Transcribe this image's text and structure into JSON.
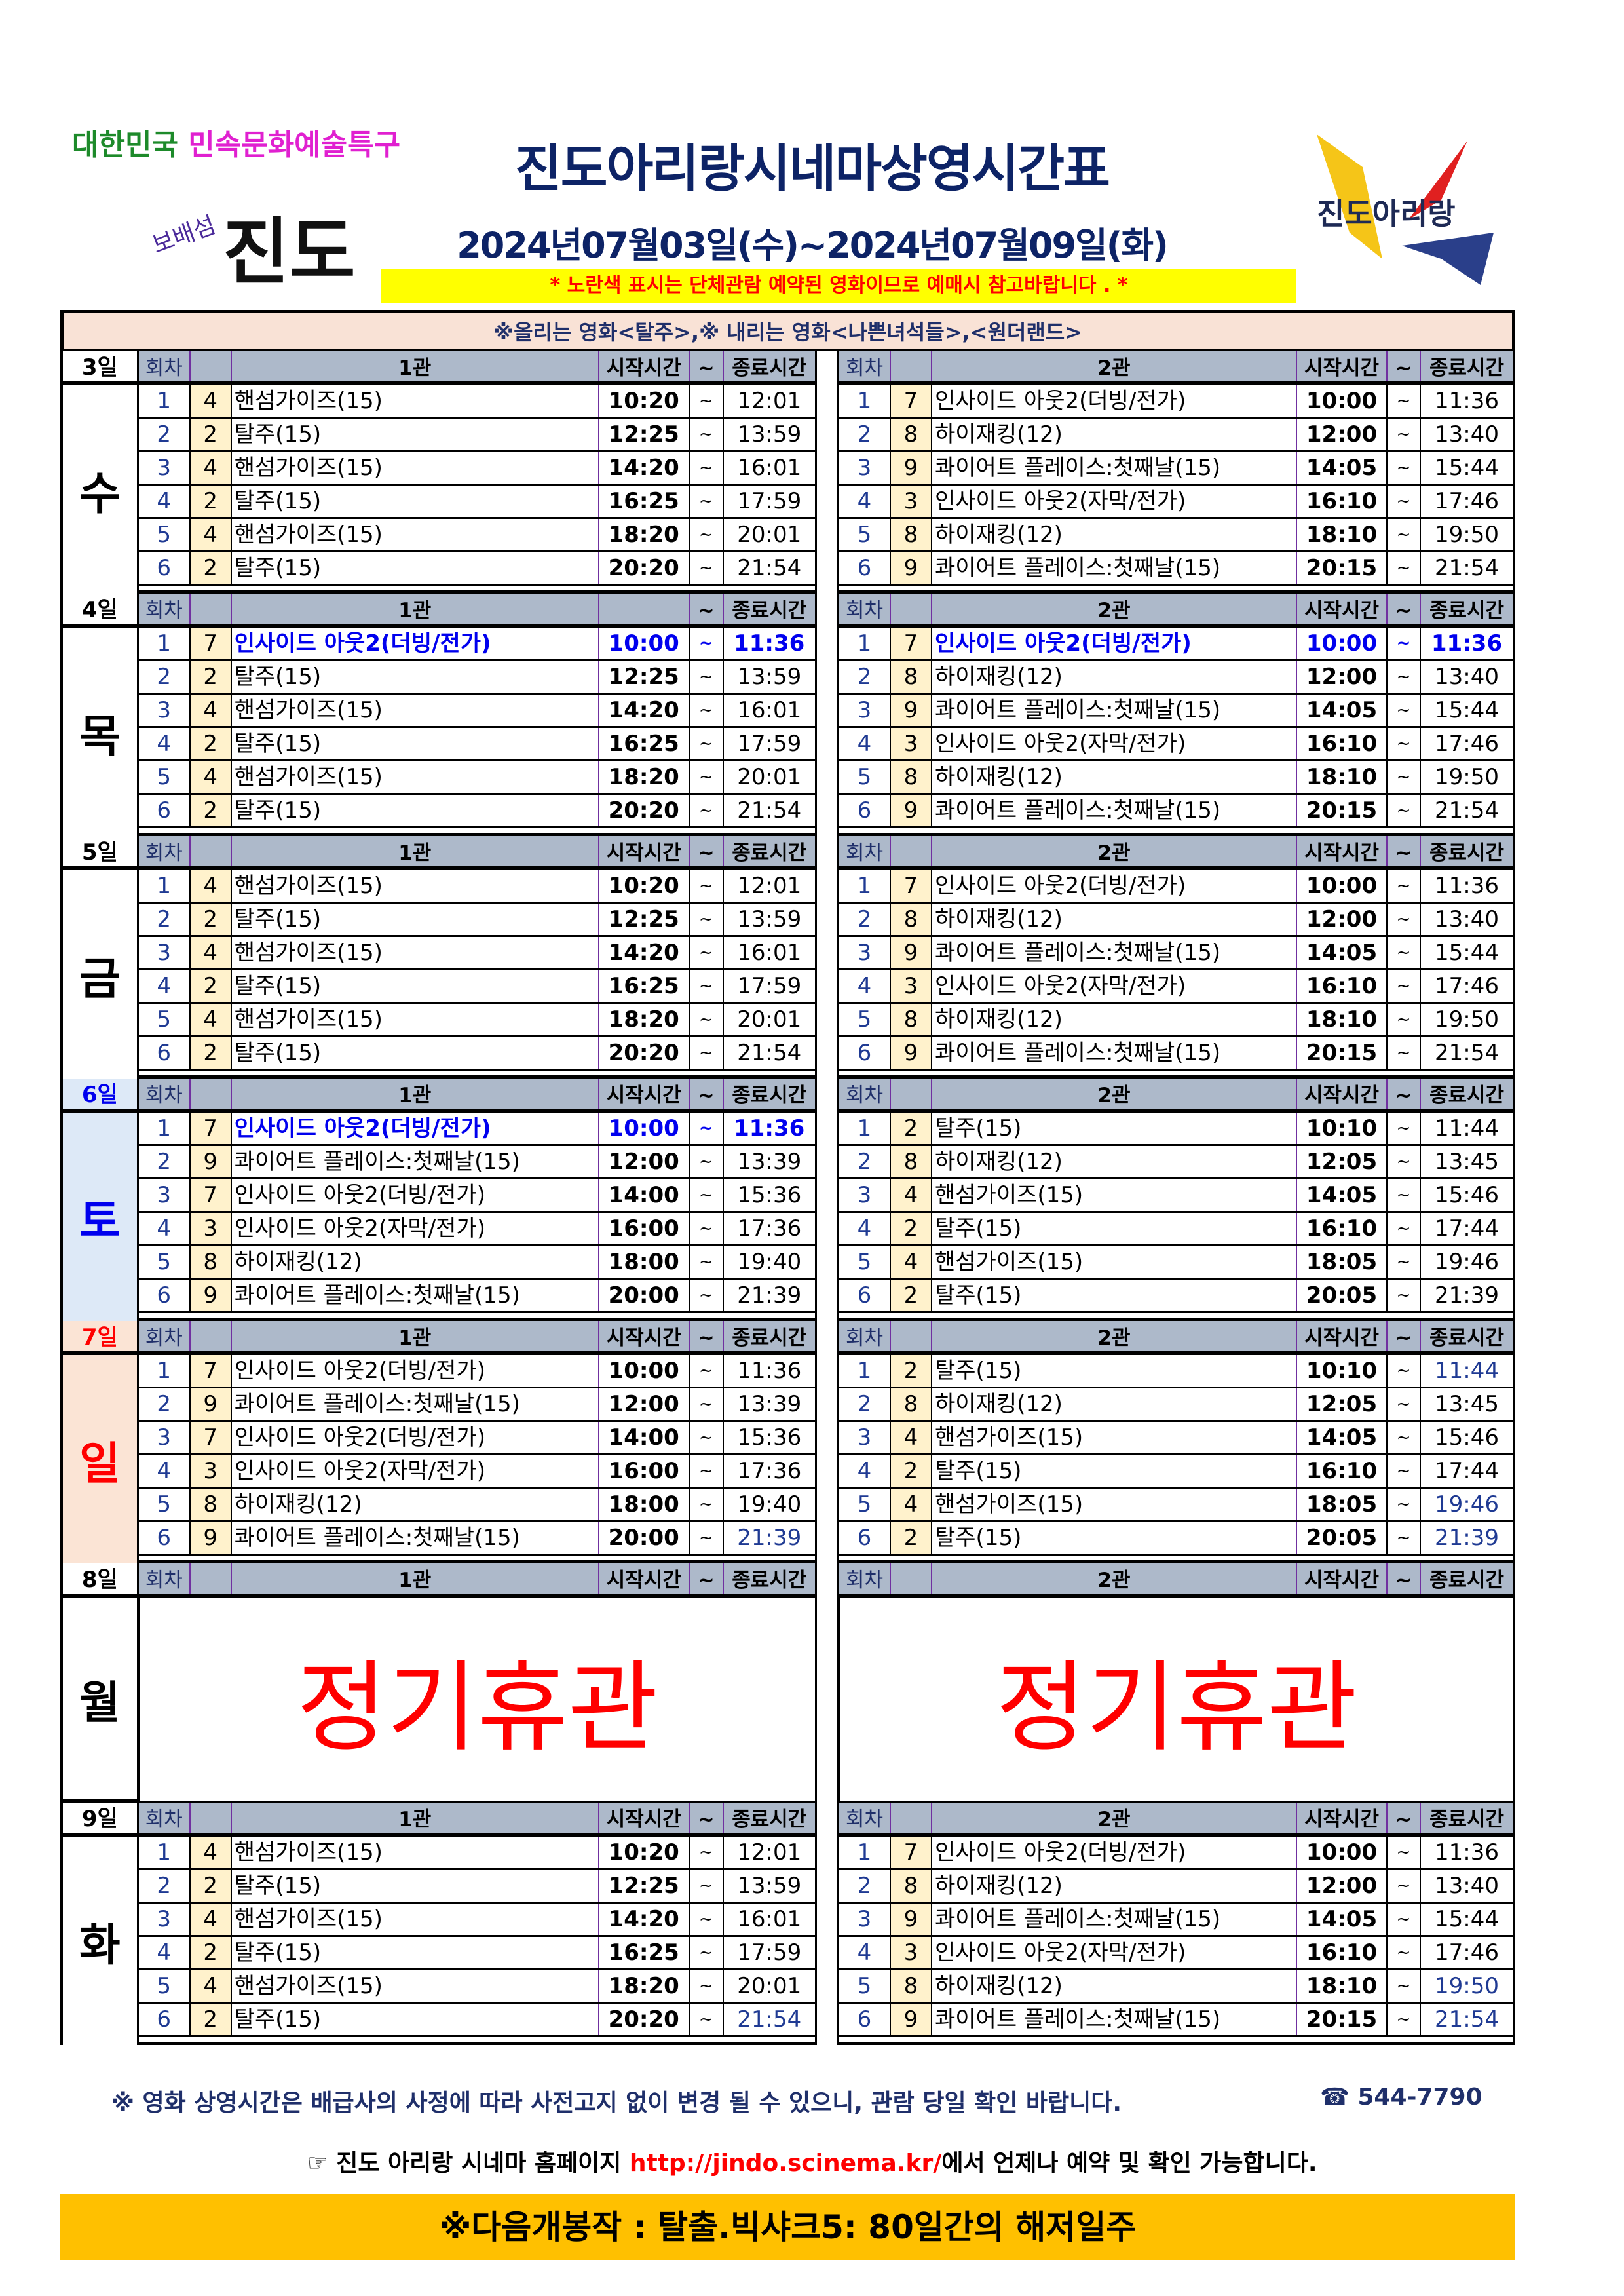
{
  "logo_left": {
    "line1_green": "대한민국",
    "line1_magenta": "민속문화예술특구",
    "small": "보배섬",
    "big": "진도"
  },
  "logo_right": {
    "text": "진도아리랑"
  },
  "title": "진도아리랑시네마상영시간표",
  "date_range": "2024년07월03일(수)~2024년07월09일(화)",
  "yellow_notice": "* 노란색 표시는 단체관람 예약된 영화이므로 예매시 참고바랍니다 . *",
  "top_notice": "※올리는 영화<탈주>,※ 내리는 영화<나쁜녀석들>,<원더랜드>",
  "colors": {
    "header_bg": "#adb9ca",
    "rating_bg": "#fff2cc",
    "highlight": "#0000ee",
    "closed": "#ff0000",
    "next_bg": "#ffc000",
    "notice_bg": "#f9e2d6",
    "sat_bg": "#dde9f7",
    "sun_bg": "#fbe4d5"
  },
  "days": [
    {
      "day": "3일",
      "weekday": "수",
      "left": {
        "h": {
          "round": "회차",
          "hall": "1관",
          "start": "시작시간",
          "tilde": "~",
          "end": "종료시간"
        },
        "rows": [
          {
            "n": "1",
            "r": "4",
            "t": "핸섬가이즈(15)",
            "s": "10:20",
            "e": "12:01"
          },
          {
            "n": "2",
            "r": "2",
            "t": "탈주(15)",
            "s": "12:25",
            "e": "13:59"
          },
          {
            "n": "3",
            "r": "4",
            "t": "핸섬가이즈(15)",
            "s": "14:20",
            "e": "16:01"
          },
          {
            "n": "4",
            "r": "2",
            "t": "탈주(15)",
            "s": "16:25",
            "e": "17:59"
          },
          {
            "n": "5",
            "r": "4",
            "t": "핸섬가이즈(15)",
            "s": "18:20",
            "e": "20:01"
          },
          {
            "n": "6",
            "r": "2",
            "t": "탈주(15)",
            "s": "20:20",
            "e": "21:54"
          }
        ]
      },
      "right": {
        "h": {
          "round": "회차",
          "hall": "2관",
          "start": "시작시간",
          "tilde": "~",
          "end": "종료시간"
        },
        "rows": [
          {
            "n": "1",
            "r": "7",
            "t": "인사이드 아웃2(더빙/전가)",
            "s": "10:00",
            "e": "11:36"
          },
          {
            "n": "2",
            "r": "8",
            "t": "하이재킹(12)",
            "s": "12:00",
            "e": "13:40"
          },
          {
            "n": "3",
            "r": "9",
            "t": "콰이어트 플레이스:첫째날(15)",
            "s": "14:05",
            "e": "15:44"
          },
          {
            "n": "4",
            "r": "3",
            "t": "인사이드 아웃2(자막/전가)",
            "s": "16:10",
            "e": "17:46"
          },
          {
            "n": "5",
            "r": "8",
            "t": "하이재킹(12)",
            "s": "18:10",
            "e": "19:50"
          },
          {
            "n": "6",
            "r": "9",
            "t": "콰이어트 플레이스:첫째날(15)",
            "s": "20:15",
            "e": "21:54"
          }
        ]
      }
    },
    {
      "day": "4일",
      "weekday": "목",
      "left": {
        "h": {
          "round": "회차",
          "hall": "1관",
          "start": "",
          "tilde": "~",
          "end": "종료시간"
        },
        "rows": [
          {
            "n": "1",
            "r": "7",
            "t": "인사이드 아웃2(더빙/전가)",
            "s": "10:00",
            "e": "11:36",
            "hl": true
          },
          {
            "n": "2",
            "r": "2",
            "t": "탈주(15)",
            "s": "12:25",
            "e": "13:59"
          },
          {
            "n": "3",
            "r": "4",
            "t": "핸섬가이즈(15)",
            "s": "14:20",
            "e": "16:01"
          },
          {
            "n": "4",
            "r": "2",
            "t": "탈주(15)",
            "s": "16:25",
            "e": "17:59"
          },
          {
            "n": "5",
            "r": "4",
            "t": "핸섬가이즈(15)",
            "s": "18:20",
            "e": "20:01"
          },
          {
            "n": "6",
            "r": "2",
            "t": "탈주(15)",
            "s": "20:20",
            "e": "21:54"
          }
        ]
      },
      "right": {
        "h": {
          "round": "회차",
          "hall": "2관",
          "start": "시작시간",
          "tilde": "~",
          "end": "종료시간"
        },
        "rows": [
          {
            "n": "1",
            "r": "7",
            "t": "인사이드 아웃2(더빙/전가)",
            "s": "10:00",
            "e": "11:36",
            "hl": true
          },
          {
            "n": "2",
            "r": "8",
            "t": "하이재킹(12)",
            "s": "12:00",
            "e": "13:40"
          },
          {
            "n": "3",
            "r": "9",
            "t": "콰이어트 플레이스:첫째날(15)",
            "s": "14:05",
            "e": "15:44"
          },
          {
            "n": "4",
            "r": "3",
            "t": "인사이드 아웃2(자막/전가)",
            "s": "16:10",
            "e": "17:46"
          },
          {
            "n": "5",
            "r": "8",
            "t": "하이재킹(12)",
            "s": "18:10",
            "e": "19:50"
          },
          {
            "n": "6",
            "r": "9",
            "t": "콰이어트 플레이스:첫째날(15)",
            "s": "20:15",
            "e": "21:54"
          }
        ]
      }
    },
    {
      "day": "5일",
      "weekday": "금",
      "left": {
        "h": {
          "round": "회차",
          "hall": "1관",
          "start": "시작시간",
          "tilde": "~",
          "end": "종료시간"
        },
        "rows": [
          {
            "n": "1",
            "r": "4",
            "t": "핸섬가이즈(15)",
            "s": "10:20",
            "e": "12:01"
          },
          {
            "n": "2",
            "r": "2",
            "t": "탈주(15)",
            "s": "12:25",
            "e": "13:59"
          },
          {
            "n": "3",
            "r": "4",
            "t": "핸섬가이즈(15)",
            "s": "14:20",
            "e": "16:01"
          },
          {
            "n": "4",
            "r": "2",
            "t": "탈주(15)",
            "s": "16:25",
            "e": "17:59"
          },
          {
            "n": "5",
            "r": "4",
            "t": "핸섬가이즈(15)",
            "s": "18:20",
            "e": "20:01"
          },
          {
            "n": "6",
            "r": "2",
            "t": "탈주(15)",
            "s": "20:20",
            "e": "21:54"
          }
        ]
      },
      "right": {
        "h": {
          "round": "회차",
          "hall": "2관",
          "start": "시작시간",
          "tilde": "~",
          "end": "종료시간"
        },
        "rows": [
          {
            "n": "1",
            "r": "7",
            "t": "인사이드 아웃2(더빙/전가)",
            "s": "10:00",
            "e": "11:36"
          },
          {
            "n": "2",
            "r": "8",
            "t": "하이재킹(12)",
            "s": "12:00",
            "e": "13:40"
          },
          {
            "n": "3",
            "r": "9",
            "t": "콰이어트 플레이스:첫째날(15)",
            "s": "14:05",
            "e": "15:44"
          },
          {
            "n": "4",
            "r": "3",
            "t": "인사이드 아웃2(자막/전가)",
            "s": "16:10",
            "e": "17:46"
          },
          {
            "n": "5",
            "r": "8",
            "t": "하이재킹(12)",
            "s": "18:10",
            "e": "19:50"
          },
          {
            "n": "6",
            "r": "9",
            "t": "콰이어트 플레이스:첫째날(15)",
            "s": "20:15",
            "e": "21:54"
          }
        ]
      }
    },
    {
      "day": "6일",
      "weekday": "토",
      "day_color": "#0000ee",
      "bg": "#dde9f7",
      "left": {
        "h": {
          "round": "회차",
          "hall": "1관",
          "start": "시작시간",
          "tilde": "~",
          "end": "종료시간"
        },
        "rows": [
          {
            "n": "1",
            "r": "7",
            "t": "인사이드 아웃2(더빙/전가)",
            "s": "10:00",
            "e": "11:36",
            "hl": true
          },
          {
            "n": "2",
            "r": "9",
            "t": "콰이어트 플레이스:첫째날(15)",
            "s": "12:00",
            "e": "13:39"
          },
          {
            "n": "3",
            "r": "7",
            "t": "인사이드 아웃2(더빙/전가)",
            "s": "14:00",
            "e": "15:36"
          },
          {
            "n": "4",
            "r": "3",
            "t": "인사이드 아웃2(자막/전가)",
            "s": "16:00",
            "e": "17:36"
          },
          {
            "n": "5",
            "r": "8",
            "t": "하이재킹(12)",
            "s": "18:00",
            "e": "19:40"
          },
          {
            "n": "6",
            "r": "9",
            "t": "콰이어트 플레이스:첫째날(15)",
            "s": "20:00",
            "e": "21:39"
          }
        ]
      },
      "right": {
        "h": {
          "round": "회차",
          "hall": "2관",
          "start": "시작시간",
          "tilde": "~",
          "end": "종료시간"
        },
        "rows": [
          {
            "n": "1",
            "r": "2",
            "t": "탈주(15)",
            "s": "10:10",
            "e": "11:44"
          },
          {
            "n": "2",
            "r": "8",
            "t": "하이재킹(12)",
            "s": "12:05",
            "e": "13:45"
          },
          {
            "n": "3",
            "r": "4",
            "t": "핸섬가이즈(15)",
            "s": "14:05",
            "e": "15:46"
          },
          {
            "n": "4",
            "r": "2",
            "t": "탈주(15)",
            "s": "16:10",
            "e": "17:44"
          },
          {
            "n": "5",
            "r": "4",
            "t": "핸섬가이즈(15)",
            "s": "18:05",
            "e": "19:46"
          },
          {
            "n": "6",
            "r": "2",
            "t": "탈주(15)",
            "s": "20:05",
            "e": "21:39"
          }
        ]
      }
    },
    {
      "day": "7일",
      "weekday": "일",
      "day_color": "#ff0000",
      "bg": "#fbe4d5",
      "left": {
        "h": {
          "round": "회차",
          "hall": "1관",
          "start": "시작시간",
          "tilde": "~",
          "end": "종료시간"
        },
        "rows": [
          {
            "n": "1",
            "r": "7",
            "t": "인사이드 아웃2(더빙/전가)",
            "s": "10:00",
            "e": "11:36"
          },
          {
            "n": "2",
            "r": "9",
            "t": "콰이어트 플레이스:첫째날(15)",
            "s": "12:00",
            "e": "13:39"
          },
          {
            "n": "3",
            "r": "7",
            "t": "인사이드 아웃2(더빙/전가)",
            "s": "14:00",
            "e": "15:36"
          },
          {
            "n": "4",
            "r": "3",
            "t": "인사이드 아웃2(자막/전가)",
            "s": "16:00",
            "e": "17:36"
          },
          {
            "n": "5",
            "r": "8",
            "t": "하이재킹(12)",
            "s": "18:00",
            "e": "19:40"
          },
          {
            "n": "6",
            "r": "9",
            "t": "콰이어트 플레이스:첫째날(15)",
            "s": "20:00",
            "e": "21:39",
            "eb": true
          }
        ]
      },
      "right": {
        "h": {
          "round": "회차",
          "hall": "2관",
          "start": "시작시간",
          "tilde": "~",
          "end": "종료시간"
        },
        "rows": [
          {
            "n": "1",
            "r": "2",
            "t": "탈주(15)",
            "s": "10:10",
            "e": "11:44",
            "eb": true
          },
          {
            "n": "2",
            "r": "8",
            "t": "하이재킹(12)",
            "s": "12:05",
            "e": "13:45"
          },
          {
            "n": "3",
            "r": "4",
            "t": "핸섬가이즈(15)",
            "s": "14:05",
            "e": "15:46"
          },
          {
            "n": "4",
            "r": "2",
            "t": "탈주(15)",
            "s": "16:10",
            "e": "17:44"
          },
          {
            "n": "5",
            "r": "4",
            "t": "핸섬가이즈(15)",
            "s": "18:05",
            "e": "19:46",
            "eb": true
          },
          {
            "n": "6",
            "r": "2",
            "t": "탈주(15)",
            "s": "20:05",
            "e": "21:39",
            "eb": true
          }
        ]
      }
    },
    {
      "day": "8일",
      "weekday": "월",
      "closed": "정기휴관",
      "left": {
        "h": {
          "round": "회차",
          "hall": "1관",
          "start": "시작시간",
          "tilde": "~",
          "end": "종료시간"
        },
        "rows": []
      },
      "right": {
        "h": {
          "round": "회차",
          "hall": "2관",
          "start": "시작시간",
          "tilde": "~",
          "end": "종료시간"
        },
        "rows": []
      }
    },
    {
      "day": "9일",
      "weekday": "화",
      "left": {
        "h": {
          "round": "회차",
          "hall": "1관",
          "start": "시작시간",
          "tilde": "~",
          "end": "종료시간"
        },
        "rows": [
          {
            "n": "1",
            "r": "4",
            "t": "핸섬가이즈(15)",
            "s": "10:20",
            "e": "12:01"
          },
          {
            "n": "2",
            "r": "2",
            "t": "탈주(15)",
            "s": "12:25",
            "e": "13:59"
          },
          {
            "n": "3",
            "r": "4",
            "t": "핸섬가이즈(15)",
            "s": "14:20",
            "e": "16:01"
          },
          {
            "n": "4",
            "r": "2",
            "t": "탈주(15)",
            "s": "16:25",
            "e": "17:59"
          },
          {
            "n": "5",
            "r": "4",
            "t": "핸섬가이즈(15)",
            "s": "18:20",
            "e": "20:01"
          },
          {
            "n": "6",
            "r": "2",
            "t": "탈주(15)",
            "s": "20:20",
            "e": "21:54",
            "eb": true
          }
        ]
      },
      "right": {
        "h": {
          "round": "회차",
          "hall": "2관",
          "start": "시작시간",
          "tilde": "~",
          "end": "종료시간"
        },
        "rows": [
          {
            "n": "1",
            "r": "7",
            "t": "인사이드 아웃2(더빙/전가)",
            "s": "10:00",
            "e": "11:36"
          },
          {
            "n": "2",
            "r": "8",
            "t": "하이재킹(12)",
            "s": "12:00",
            "e": "13:40"
          },
          {
            "n": "3",
            "r": "9",
            "t": "콰이어트 플레이스:첫째날(15)",
            "s": "14:05",
            "e": "15:44"
          },
          {
            "n": "4",
            "r": "3",
            "t": "인사이드 아웃2(자막/전가)",
            "s": "16:10",
            "e": "17:46"
          },
          {
            "n": "5",
            "r": "8",
            "t": "하이재킹(12)",
            "s": "18:10",
            "e": "19:50",
            "eb": true
          },
          {
            "n": "6",
            "r": "9",
            "t": "콰이어트 플레이스:첫째날(15)",
            "s": "20:15",
            "e": "21:54",
            "eb": true
          }
        ]
      }
    }
  ],
  "footer": {
    "notice": "※ 영화 상영시간은 배급사의 사정에 따라 사전고지 없이 변경 될 수 있으니, 관람 당일 확인 바랍니다.",
    "phone": "☎ 544-7790",
    "homepage_prefix": "☞ 진도 아리랑 시네마 홈페이지 ",
    "homepage_url": "http://jindo.scinema.kr/",
    "homepage_suffix": "에서 언제나 예약 및 확인 가능합니다.",
    "next_release": "※다음개봉작 : 탈출.빅샤크5: 80일간의 해저일주"
  }
}
